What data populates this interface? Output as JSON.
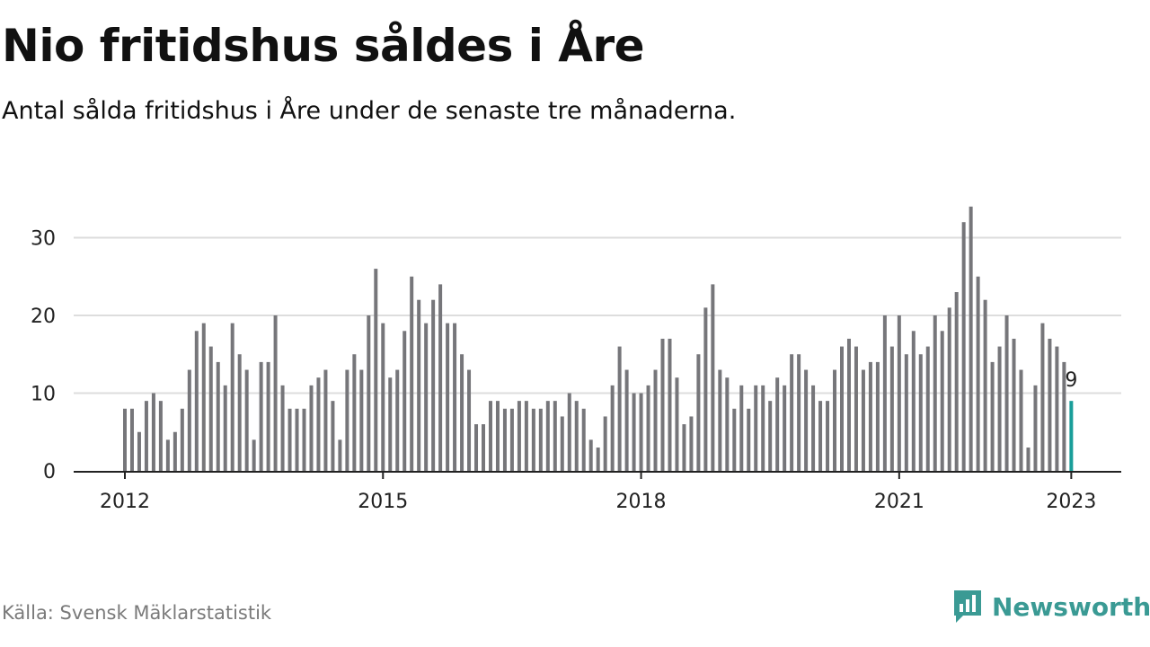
{
  "title": "Nio fritidshus såldes i Åre",
  "subtitle": "Antal sålda fritidshus i Åre under de senaste tre månaderna.",
  "source": "Källa: Svensk Mäklarstatistik",
  "brand": {
    "name": "Newsworthy",
    "icon": "newsworthy-logo-icon"
  },
  "colors": {
    "bar": "#76767a",
    "highlight": "#1a9e9a",
    "grid": "#dddddd",
    "axis": "#222222",
    "brand": "#3a9a94"
  },
  "chart_data": {
    "type": "bar",
    "x_start": "2012-01",
    "x_end": "2023-01",
    "x_tick_labels": [
      "2012",
      "2015",
      "2018",
      "2021",
      "2023"
    ],
    "y_ticks": [
      0,
      10,
      20,
      30
    ],
    "ylim": [
      0,
      35
    ],
    "grid": true,
    "values": [
      8,
      8,
      5,
      9,
      10,
      9,
      4,
      5,
      8,
      13,
      18,
      19,
      16,
      14,
      11,
      19,
      15,
      13,
      4,
      14,
      14,
      20,
      11,
      8,
      8,
      8,
      11,
      12,
      13,
      9,
      4,
      13,
      15,
      13,
      20,
      26,
      19,
      12,
      13,
      18,
      25,
      22,
      19,
      22,
      24,
      19,
      19,
      15,
      13,
      6,
      6,
      9,
      9,
      8,
      8,
      9,
      9,
      8,
      8,
      9,
      9,
      7,
      10,
      9,
      8,
      4,
      3,
      7,
      11,
      16,
      13,
      10,
      10,
      11,
      13,
      17,
      17,
      12,
      6,
      7,
      15,
      21,
      24,
      13,
      12,
      8,
      11,
      8,
      11,
      11,
      9,
      12,
      11,
      15,
      15,
      13,
      11,
      9,
      9,
      13,
      16,
      17,
      16,
      13,
      14,
      14,
      20,
      16,
      20,
      15,
      18,
      15,
      16,
      20,
      18,
      21,
      23,
      32,
      34,
      25,
      22,
      14,
      16,
      20,
      17,
      13,
      3,
      11,
      19,
      17,
      16,
      14,
      9
    ],
    "highlight": {
      "label": "9",
      "value": 9
    }
  }
}
